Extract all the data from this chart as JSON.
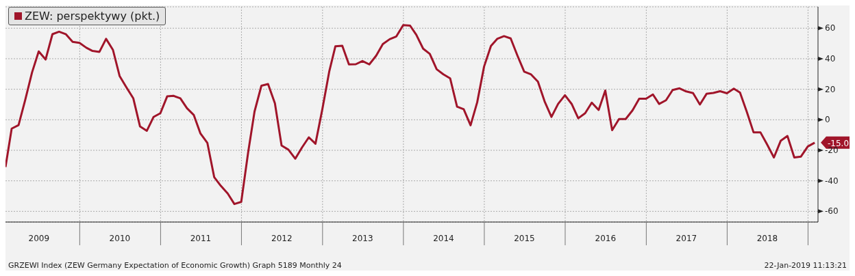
{
  "chart_data": {
    "type": "line",
    "x": [
      "2009-01-31",
      "2009-02-28",
      "2009-03-31",
      "2009-04-30",
      "2009-05-31",
      "2009-06-30",
      "2009-07-31",
      "2009-08-31",
      "2009-09-30",
      "2009-10-31",
      "2009-11-30",
      "2009-12-31",
      "2010-01-31",
      "2010-02-28",
      "2010-03-31",
      "2010-04-30",
      "2010-05-31",
      "2010-06-30",
      "2010-07-31",
      "2010-08-31",
      "2010-09-30",
      "2010-10-31",
      "2010-11-30",
      "2010-12-31",
      "2011-01-31",
      "2011-02-28",
      "2011-03-31",
      "2011-04-30",
      "2011-05-31",
      "2011-06-30",
      "2011-07-31",
      "2011-08-31",
      "2011-09-30",
      "2011-10-31",
      "2011-11-30",
      "2011-12-31",
      "2012-01-31",
      "2012-02-29",
      "2012-03-31",
      "2012-04-30",
      "2012-05-31",
      "2012-06-30",
      "2012-07-31",
      "2012-08-31",
      "2012-09-30",
      "2012-10-31",
      "2012-11-30",
      "2012-12-31",
      "2013-01-31",
      "2013-02-28",
      "2013-03-31",
      "2013-04-30",
      "2013-05-31",
      "2013-06-30",
      "2013-07-31",
      "2013-08-31",
      "2013-09-30",
      "2013-10-31",
      "2013-11-30",
      "2013-12-31",
      "2014-01-31",
      "2014-02-28",
      "2014-03-31",
      "2014-04-30",
      "2014-05-31",
      "2014-06-30",
      "2014-07-31",
      "2014-08-31",
      "2014-09-30",
      "2014-10-31",
      "2014-11-30",
      "2014-12-31",
      "2015-01-31",
      "2015-02-28",
      "2015-03-31",
      "2015-04-30",
      "2015-05-31",
      "2015-06-30",
      "2015-07-31",
      "2015-08-31",
      "2015-09-30",
      "2015-10-31",
      "2015-11-30",
      "2015-12-31",
      "2016-01-31",
      "2016-02-29",
      "2016-03-31",
      "2016-04-30",
      "2016-05-31",
      "2016-06-30",
      "2016-07-31",
      "2016-08-31",
      "2016-09-30",
      "2016-10-31",
      "2016-11-30",
      "2016-12-31",
      "2017-01-31",
      "2017-02-28",
      "2017-03-31",
      "2017-04-30",
      "2017-05-31",
      "2017-06-30",
      "2017-07-31",
      "2017-08-31",
      "2017-09-30",
      "2017-10-31",
      "2017-11-30",
      "2017-12-31",
      "2018-01-31",
      "2018-02-28",
      "2018-03-31",
      "2018-04-30",
      "2018-05-31",
      "2018-06-30",
      "2018-07-31",
      "2018-08-31",
      "2018-09-30",
      "2018-10-31",
      "2018-11-30",
      "2018-12-31",
      "2019-01-31"
    ],
    "series": [
      {
        "name": "ZEW: perspektywy (pkt.)",
        "color": "#a0152a",
        "values": [
          -31.0,
          -5.8,
          -3.5,
          13.0,
          31.1,
          44.8,
          39.5,
          56.1,
          57.7,
          56.0,
          51.1,
          50.4,
          47.2,
          45.1,
          44.5,
          53.0,
          45.8,
          28.7,
          21.2,
          14.0,
          -4.3,
          -7.2,
          1.8,
          4.3,
          15.4,
          15.7,
          14.1,
          7.6,
          3.1,
          -9.0,
          -15.1,
          -37.6,
          -43.3,
          -48.3,
          -55.2,
          -53.8,
          -21.6,
          5.4,
          22.3,
          23.4,
          10.8,
          -16.9,
          -19.6,
          -25.5,
          -18.2,
          -11.5,
          -15.7,
          6.9,
          31.5,
          48.2,
          48.5,
          36.3,
          36.4,
          38.5,
          36.3,
          42.0,
          49.6,
          52.8,
          54.6,
          62.0,
          61.7,
          55.7,
          46.6,
          43.2,
          33.1,
          29.8,
          27.1,
          8.6,
          6.9,
          -3.6,
          11.5,
          34.9,
          48.4,
          53.0,
          54.8,
          53.3,
          41.9,
          31.5,
          29.7,
          25.0,
          12.1,
          1.9,
          10.4,
          16.1,
          10.2,
          1.0,
          4.3,
          11.2,
          6.4,
          19.2,
          -6.8,
          0.5,
          0.5,
          6.2,
          13.8,
          13.8,
          16.6,
          10.4,
          12.8,
          19.5,
          20.6,
          18.6,
          17.5,
          10.0,
          17.0,
          17.6,
          18.7,
          17.4,
          20.4,
          17.8,
          5.1,
          -8.2,
          -8.2,
          -16.1,
          -24.7,
          -13.7,
          -10.6,
          -24.7,
          -24.1,
          -17.5,
          -15.0
        ]
      }
    ],
    "xlim": [
      "2009-01-31",
      "2019-02-15"
    ],
    "xticks": [
      {
        "value": "2009-07-01",
        "label": "2009"
      },
      {
        "value": "2010-01-01",
        "label": null
      },
      {
        "value": "2010-07-01",
        "label": "2010"
      },
      {
        "value": "2011-01-01",
        "label": null
      },
      {
        "value": "2011-07-01",
        "label": "2011"
      },
      {
        "value": "2012-01-01",
        "label": null
      },
      {
        "value": "2012-07-01",
        "label": "2012"
      },
      {
        "value": "2013-01-01",
        "label": null
      },
      {
        "value": "2013-07-01",
        "label": "2013"
      },
      {
        "value": "2014-01-01",
        "label": null
      },
      {
        "value": "2014-07-01",
        "label": "2014"
      },
      {
        "value": "2015-01-01",
        "label": null
      },
      {
        "value": "2015-07-01",
        "label": "2015"
      },
      {
        "value": "2016-01-01",
        "label": null
      },
      {
        "value": "2016-07-01",
        "label": "2016"
      },
      {
        "value": "2017-01-01",
        "label": null
      },
      {
        "value": "2017-07-01",
        "label": "2017"
      },
      {
        "value": "2018-01-01",
        "label": null
      },
      {
        "value": "2018-07-01",
        "label": "2018"
      },
      {
        "value": "2019-01-01",
        "label": null
      }
    ],
    "ylim": [
      -67,
      74
    ],
    "yticks": [
      -60,
      -40,
      -20,
      0,
      20,
      40,
      60
    ],
    "grid": true,
    "legend": "top left",
    "line_style": "solid",
    "annotations": [
      {
        "text": "-15.0",
        "x": "2019-01-31",
        "y": -15.0
      },
      "GRZEWI Index (ZEW Germany Expectation of Economic Growth) Graph 5189  Monthly 24",
      "22-Jan-2019 11:13:21"
    ]
  }
}
